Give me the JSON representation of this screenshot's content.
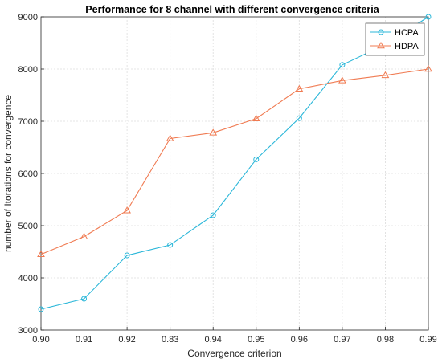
{
  "chart_data": {
    "type": "line",
    "title": "Performance for 8 channel with different convergence criteria",
    "xlabel": "Convergence criterion",
    "ylabel": "number of Itorations for convergence",
    "categories": [
      "0.90",
      "0.91",
      "0.92",
      "0.83",
      "0.94",
      "0.95",
      "0.96",
      "0.97",
      "0.98",
      "0.99"
    ],
    "ylim": [
      3000,
      9000
    ],
    "yticks": [
      3000,
      4000,
      5000,
      6000,
      7000,
      8000,
      9000
    ],
    "grid": true,
    "legend_position": "top-right",
    "series": [
      {
        "name": "HCPA",
        "color": "#2bb7d9",
        "marker": "circle",
        "values": [
          3400,
          3600,
          4430,
          4630,
          5200,
          6270,
          7060,
          8080,
          8470,
          9000
        ]
      },
      {
        "name": "HDPA",
        "color": "#f07b52",
        "marker": "triangle",
        "values": [
          4450,
          4790,
          5290,
          6670,
          6780,
          7050,
          7620,
          7780,
          7880,
          8000
        ]
      }
    ]
  }
}
